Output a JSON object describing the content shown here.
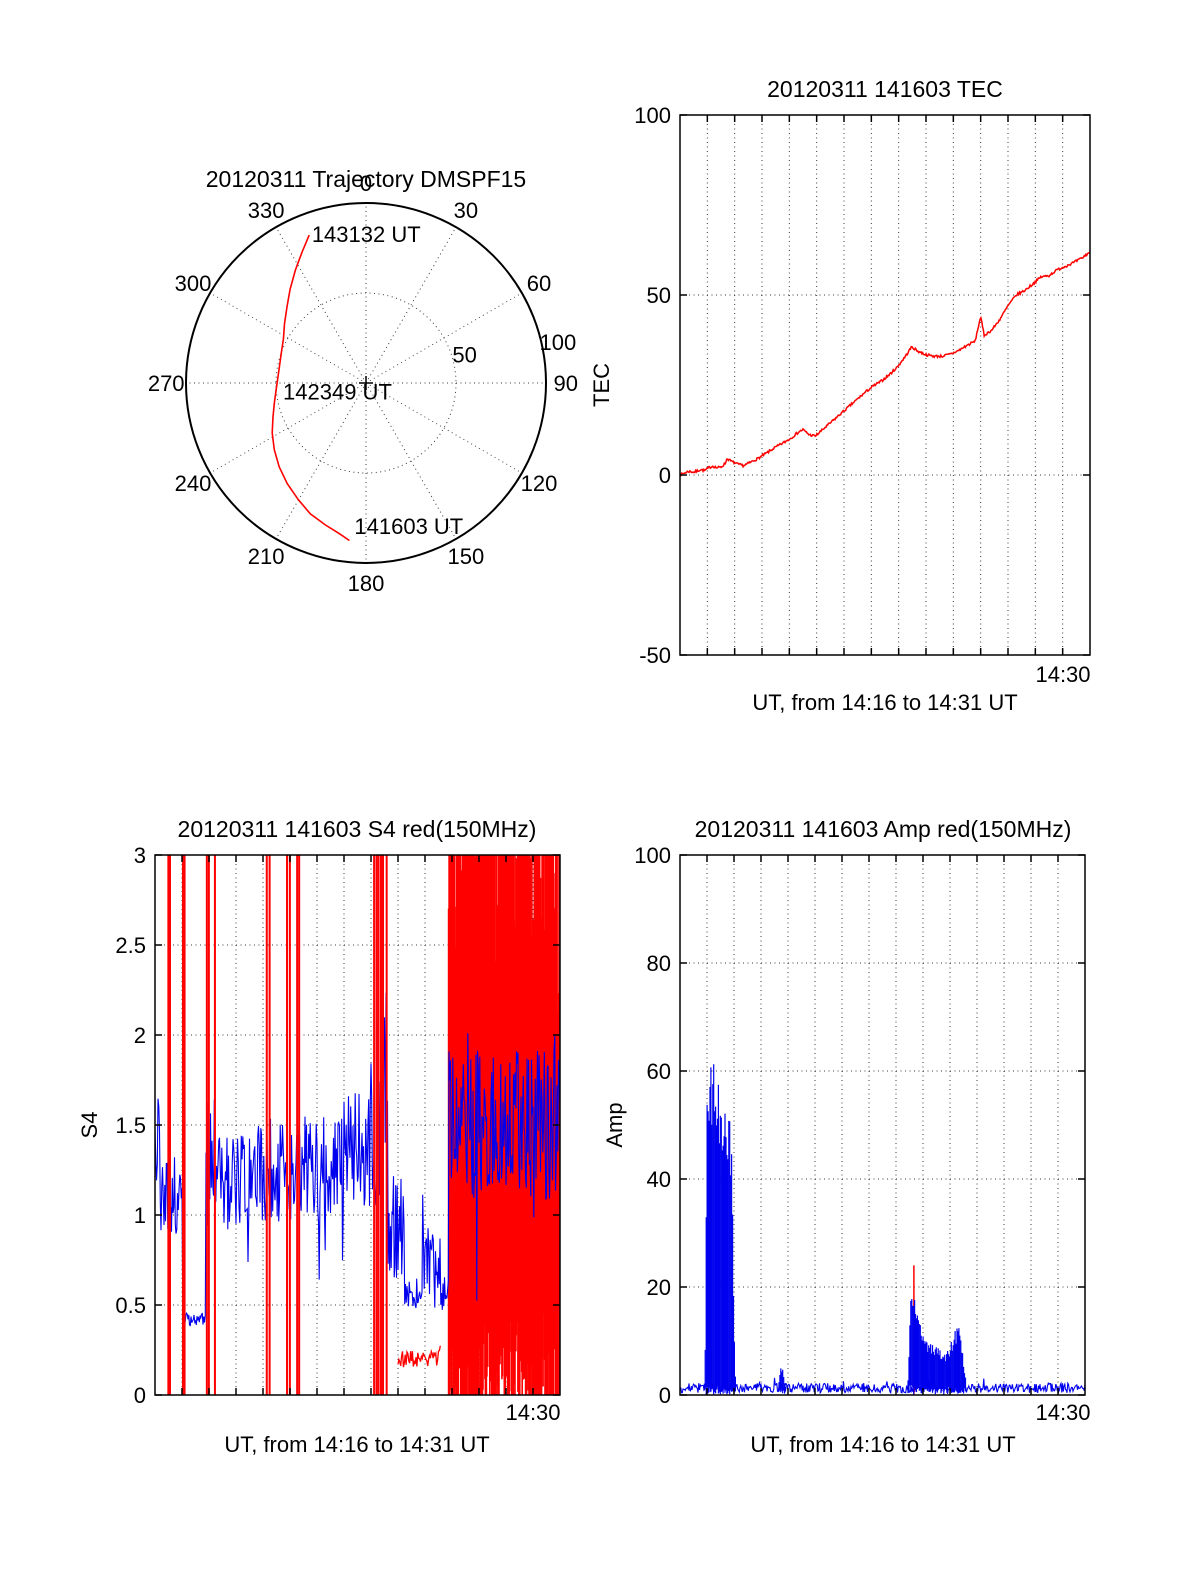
{
  "figure": {
    "background": "#ffffff"
  },
  "chart_data": [
    {
      "id": "trajectory",
      "type": "line",
      "coordinate": "polar-skyplot",
      "title": "20120311 Trajectory DMSPF15",
      "azimuth_ticks_deg": [
        0,
        30,
        60,
        90,
        120,
        150,
        180,
        210,
        240,
        270,
        300,
        330
      ],
      "radial_ticks": [
        50,
        100
      ],
      "radial_max": 100,
      "series_color": "#ff0000",
      "annotations": [
        {
          "text": "143132 UT",
          "az": 339,
          "r": 84
        },
        {
          "text": "142349 UT",
          "az": 258.7,
          "r": 47
        },
        {
          "text": "141603 UT",
          "az": 184.4,
          "r": 84
        }
      ],
      "trajectory_az_r": [
        [
          339,
          88
        ],
        [
          334,
          81
        ],
        [
          328,
          74
        ],
        [
          321,
          67
        ],
        [
          314,
          61
        ],
        [
          306,
          56
        ],
        [
          298,
          52
        ],
        [
          290,
          50
        ],
        [
          282,
          49
        ],
        [
          274,
          49
        ],
        [
          266,
          50
        ],
        [
          258,
          52
        ],
        [
          250,
          55
        ],
        [
          242,
          59
        ],
        [
          234,
          63
        ],
        [
          226,
          67
        ],
        [
          218,
          71
        ],
        [
          210,
          75
        ],
        [
          203,
          79
        ],
        [
          196,
          82
        ],
        [
          190,
          85
        ],
        [
          186,
          88
        ]
      ]
    },
    {
      "id": "tec",
      "type": "line",
      "title": "20120311 141603 TEC",
      "ylabel": "TEC",
      "xlabel": "UT, from 14:16 to 14:31 UT",
      "ylim": [
        -50,
        100
      ],
      "yticks": [
        100,
        50,
        0,
        -50
      ],
      "grid_yticks": [
        50,
        0
      ],
      "x_minutes": 15,
      "x_tick": {
        "minute": 14,
        "label": "14:30"
      },
      "series": [
        {
          "name": "TEC",
          "color": "#ff0000",
          "noise": 0.35,
          "points": [
            [
              0,
              0
            ],
            [
              0.02,
              1
            ],
            [
              0.035,
              0.8
            ],
            [
              0.05,
              1.5
            ],
            [
              0.06,
              1.2
            ],
            [
              0.07,
              2
            ],
            [
              0.08,
              2.5
            ],
            [
              0.09,
              2
            ],
            [
              0.1,
              2.2
            ],
            [
              0.11,
              3.2
            ],
            [
              0.115,
              4.6
            ],
            [
              0.125,
              3.8
            ],
            [
              0.14,
              3
            ],
            [
              0.155,
              2.6
            ],
            [
              0.17,
              3.4
            ],
            [
              0.19,
              4.6
            ],
            [
              0.21,
              6
            ],
            [
              0.23,
              7.5
            ],
            [
              0.25,
              8.8
            ],
            [
              0.27,
              10.2
            ],
            [
              0.29,
              12
            ],
            [
              0.3,
              12.6
            ],
            [
              0.315,
              11.2
            ],
            [
              0.33,
              10.8
            ],
            [
              0.35,
              12.8
            ],
            [
              0.37,
              14.8
            ],
            [
              0.39,
              16.8
            ],
            [
              0.41,
              18.8
            ],
            [
              0.43,
              20.8
            ],
            [
              0.45,
              22.8
            ],
            [
              0.47,
              24.6
            ],
            [
              0.49,
              26
            ],
            [
              0.51,
              27.8
            ],
            [
              0.53,
              30
            ],
            [
              0.55,
              33
            ],
            [
              0.565,
              35.6
            ],
            [
              0.58,
              34.4
            ],
            [
              0.6,
              33.4
            ],
            [
              0.62,
              33
            ],
            [
              0.64,
              33
            ],
            [
              0.66,
              33.6
            ],
            [
              0.68,
              34.6
            ],
            [
              0.7,
              36
            ],
            [
              0.72,
              37.2
            ],
            [
              0.733,
              44
            ],
            [
              0.742,
              38.8
            ],
            [
              0.76,
              40.2
            ],
            [
              0.78,
              43.2
            ],
            [
              0.8,
              47
            ],
            [
              0.82,
              50
            ],
            [
              0.84,
              51.2
            ],
            [
              0.86,
              53
            ],
            [
              0.88,
              55
            ],
            [
              0.9,
              55.4
            ],
            [
              0.92,
              57
            ],
            [
              0.94,
              58
            ],
            [
              0.96,
              59
            ],
            [
              0.98,
              60.2
            ],
            [
              1,
              62
            ]
          ]
        }
      ]
    },
    {
      "id": "s4",
      "type": "line",
      "title": "20120311 141603 S4 red(150MHz)",
      "ylabel": "S4",
      "xlabel": "UT, from 14:16 to 14:31 UT",
      "ylim": [
        0,
        3
      ],
      "yticks": [
        3,
        2.5,
        2,
        1.5,
        1,
        0.5,
        0
      ],
      "grid_yticks": [
        2.5,
        2,
        1.5,
        1,
        0.5
      ],
      "x_minutes": 15,
      "x_tick": {
        "minute": 14,
        "label": "14:30"
      },
      "blue_color": "#0000ee",
      "red_color": "#ff0000",
      "blue_segments": [
        [
          0,
          0.012,
          1.55,
          0.45
        ],
        [
          0.012,
          0.068,
          1.1,
          0.22
        ],
        [
          0.068,
          0.125,
          0.42,
          0.035
        ],
        [
          0.125,
          0.16,
          1.3,
          0.35
        ],
        [
          0.16,
          0.245,
          1.18,
          0.26
        ],
        [
          0.245,
          0.33,
          1.25,
          0.3
        ],
        [
          0.33,
          0.47,
          1.25,
          0.3
        ],
        [
          0.47,
          0.54,
          1.35,
          0.33
        ],
        [
          0.54,
          0.575,
          1.7,
          0.8
        ],
        [
          0.575,
          0.615,
          0.95,
          0.3
        ],
        [
          0.615,
          0.66,
          0.55,
          0.07
        ],
        [
          0.66,
          0.705,
          0.75,
          0.18
        ],
        [
          0.705,
          0.725,
          0.58,
          0.12
        ],
        [
          0.725,
          1.01,
          1.5,
          0.42
        ]
      ],
      "red_vlines": [
        0.033,
        0.037,
        0.069,
        0.073,
        0.128,
        0.133,
        0.148,
        0.276,
        0.283,
        0.326,
        0.333,
        0.351,
        0.356,
        0.541,
        0.547,
        0.552,
        0.558,
        0.563,
        0.572
      ],
      "red_low_segment": {
        "x0": 0.6,
        "x1": 0.705,
        "base": 0.2,
        "noise": 0.045
      },
      "red_dense": {
        "x0": 0.725,
        "x1": 1.0
      }
    },
    {
      "id": "amp",
      "type": "line",
      "title": "20120311 141603 Amp red(150MHz)",
      "ylabel": "Amp",
      "xlabel": "UT, from 14:16 to 14:31 UT",
      "ylim": [
        0,
        100
      ],
      "yticks": [
        100,
        80,
        60,
        40,
        20,
        0
      ],
      "grid_yticks": [
        80,
        60,
        40,
        20
      ],
      "x_minutes": 15,
      "x_tick": {
        "minute": 14,
        "label": "14:30"
      },
      "blue_color": "#0000ee",
      "red_color": "#ff0000",
      "blue_baseline": {
        "base": 1.3,
        "noise": 0.9
      },
      "bursts": [
        {
          "env": [
            [
              0.06,
              2
            ],
            [
              0.063,
              10
            ],
            [
              0.066,
              52
            ],
            [
              0.075,
              55
            ],
            [
              0.085,
              57
            ],
            [
              0.095,
              53
            ],
            [
              0.105,
              50
            ],
            [
              0.115,
              51
            ],
            [
              0.122,
              48
            ],
            [
              0.127,
              44
            ],
            [
              0.131,
              25
            ],
            [
              0.134,
              10
            ],
            [
              0.137,
              3
            ]
          ]
        },
        {
          "env": [
            [
              0.242,
              1
            ],
            [
              0.247,
              4.5
            ],
            [
              0.252,
              5
            ],
            [
              0.257,
              3
            ],
            [
              0.262,
              1
            ]
          ]
        },
        {
          "env": [
            [
              0.563,
              3
            ],
            [
              0.568,
              14
            ],
            [
              0.572,
              19
            ],
            [
              0.578,
              17
            ],
            [
              0.585,
              15
            ],
            [
              0.595,
              12
            ],
            [
              0.605,
              10
            ],
            [
              0.615,
              9
            ],
            [
              0.625,
              8.5
            ],
            [
              0.635,
              8
            ],
            [
              0.645,
              7.5
            ],
            [
              0.655,
              7
            ],
            [
              0.665,
              8
            ],
            [
              0.672,
              9.5
            ],
            [
              0.68,
              11
            ],
            [
              0.688,
              11.5
            ],
            [
              0.695,
              9
            ],
            [
              0.7,
              6
            ],
            [
              0.705,
              3
            ]
          ]
        }
      ],
      "red_spike": {
        "x": 0.5775,
        "top": 24
      }
    }
  ]
}
